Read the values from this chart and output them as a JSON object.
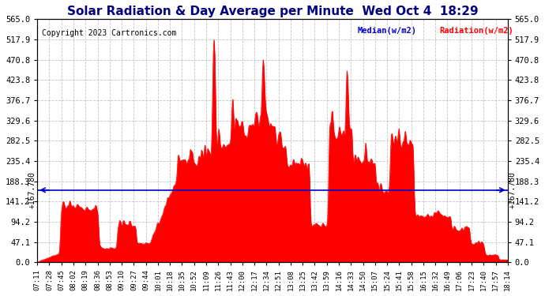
{
  "title": "Solar Radiation & Day Average per Minute  Wed Oct 4  18:29",
  "copyright": "Copyright 2023 Cartronics.com",
  "legend_median_label": "Median(w/m2)",
  "legend_radiation_label": "Radiation(w/m2)",
  "median_value": 167.78,
  "ylim": [
    0,
    565.0
  ],
  "yticks": [
    0.0,
    47.1,
    94.2,
    141.2,
    188.3,
    235.4,
    282.5,
    329.6,
    376.7,
    423.8,
    470.8,
    517.9,
    565.0
  ],
  "ytick_labels": [
    "0.0",
    "47.1",
    "94.2",
    "141.2",
    "188.3",
    "235.4",
    "282.5",
    "329.6",
    "376.7",
    "423.8",
    "470.8",
    "517.9",
    "565.0"
  ],
  "right_ytick_label": "167.780",
  "fill_color": "#ff0000",
  "line_color": "#ff0000",
  "median_color": "#0000cc",
  "background_color": "#ffffff",
  "grid_color": "#aaaaaa",
  "title_color": "#000080",
  "copyright_color": "#000000",
  "xtick_labels": [
    "07:11",
    "07:28",
    "07:45",
    "08:02",
    "08:19",
    "08:36",
    "08:53",
    "09:10",
    "09:27",
    "09:44",
    "10:01",
    "10:18",
    "10:35",
    "10:52",
    "11:09",
    "11:26",
    "11:43",
    "12:00",
    "12:17",
    "12:34",
    "12:51",
    "13:08",
    "13:25",
    "13:42",
    "13:59",
    "14:16",
    "14:33",
    "14:50",
    "15:07",
    "15:24",
    "15:41",
    "15:58",
    "16:15",
    "16:32",
    "16:49",
    "17:06",
    "17:23",
    "17:40",
    "17:57",
    "18:14"
  ]
}
